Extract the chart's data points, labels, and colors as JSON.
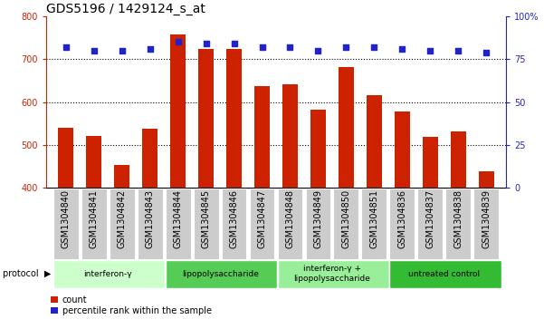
{
  "title": "GDS5196 / 1429124_s_at",
  "samples": [
    "GSM1304840",
    "GSM1304841",
    "GSM1304842",
    "GSM1304843",
    "GSM1304844",
    "GSM1304845",
    "GSM1304846",
    "GSM1304847",
    "GSM1304848",
    "GSM1304849",
    "GSM1304850",
    "GSM1304851",
    "GSM1304836",
    "GSM1304837",
    "GSM1304838",
    "GSM1304839"
  ],
  "counts": [
    540,
    520,
    453,
    537,
    757,
    725,
    725,
    638,
    642,
    582,
    682,
    615,
    577,
    519,
    531,
    437
  ],
  "percentiles": [
    82,
    80,
    80,
    81,
    85,
    84,
    84,
    82,
    82,
    80,
    82,
    82,
    81,
    80,
    80,
    79
  ],
  "groups": [
    {
      "label": "interferon-γ",
      "start": 0,
      "end": 4,
      "color": "#ccffcc"
    },
    {
      "label": "lipopolysaccharide",
      "start": 4,
      "end": 8,
      "color": "#55cc55"
    },
    {
      "label": "interferon-γ +\nlipopolysaccharide",
      "start": 8,
      "end": 12,
      "color": "#99ee99"
    },
    {
      "label": "untreated control",
      "start": 12,
      "end": 16,
      "color": "#33bb33"
    }
  ],
  "ylim_left": [
    400,
    800
  ],
  "ylim_right": [
    0,
    100
  ],
  "yticks_left": [
    400,
    500,
    600,
    700,
    800
  ],
  "yticks_right": [
    0,
    25,
    50,
    75,
    100
  ],
  "bar_color": "#cc2200",
  "dot_color": "#2222cc",
  "bar_bottom": 400,
  "tick_fontsize": 7,
  "title_fontsize": 10
}
